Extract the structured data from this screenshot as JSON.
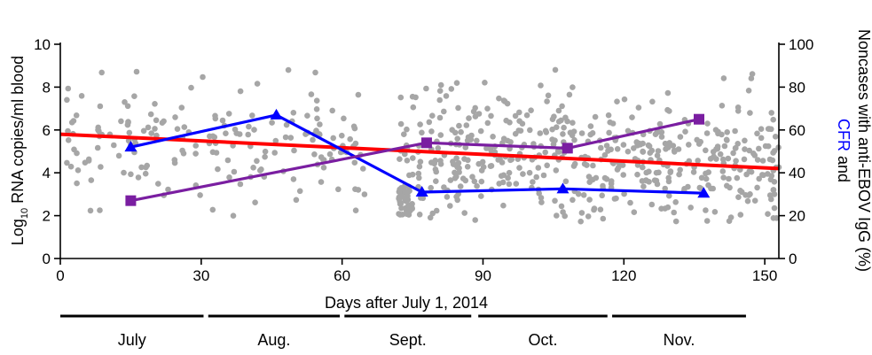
{
  "chart_data": {
    "type": "scatter",
    "title": "",
    "x_axis": {
      "label": "Days after July 1, 2014",
      "range": [
        0,
        153
      ],
      "ticks": [
        0,
        30,
        60,
        90,
        120,
        150
      ]
    },
    "y_axis_left": {
      "label_prefix": "Log",
      "label_subscript": "10",
      "label_suffix": " RNA copies/ml blood",
      "range": [
        0,
        10
      ],
      "ticks": [
        0,
        2,
        4,
        6,
        8,
        10
      ]
    },
    "y_axis_right": {
      "label_line1_colored": "CFR",
      "label_line1_rest": " and",
      "label_line2": "Noncases with anti-EBOV IgG (%)",
      "range": [
        0,
        100
      ],
      "ticks": [
        0,
        20,
        40,
        60,
        80,
        100
      ]
    },
    "months": [
      {
        "label": "July",
        "start": 0,
        "end": 30.5
      },
      {
        "label": "Aug.",
        "start": 31.5,
        "end": 59.5
      },
      {
        "label": "Sept.",
        "start": 60.5,
        "end": 87.5
      },
      {
        "label": "Oct.",
        "start": 89,
        "end": 116.5
      },
      {
        "label": "Nov.",
        "start": 117.5,
        "end": 146
      }
    ],
    "series": [
      {
        "color": "#ff0000",
        "kind": "trend",
        "axis": "left",
        "points": [
          [
            0,
            5.8
          ],
          [
            153,
            4.2
          ]
        ]
      },
      {
        "color": "#0000ff",
        "kind": "line-triangle",
        "axis": "right",
        "points": [
          [
            15,
            52
          ],
          [
            46,
            67
          ],
          [
            77,
            31
          ],
          [
            107,
            32.5
          ],
          [
            137,
            30.5
          ]
        ]
      },
      {
        "color": "#7a1ea1",
        "kind": "line-square",
        "axis": "right",
        "points": [
          [
            15,
            27
          ],
          [
            78,
            54
          ],
          [
            108,
            51.5
          ],
          [
            136,
            65
          ]
        ]
      }
    ],
    "scatter": {
      "color": "#a6a6a6",
      "axis": "left",
      "point_count": 700,
      "distribution_note": "individual patient viral loads, roughly 2-9 log10 copies/ml across all days"
    }
  },
  "colors": {
    "scatter": "#a6a6a6",
    "trend": "#ff0000",
    "cfr": "#0000ff",
    "igg": "#7a1ea1"
  }
}
